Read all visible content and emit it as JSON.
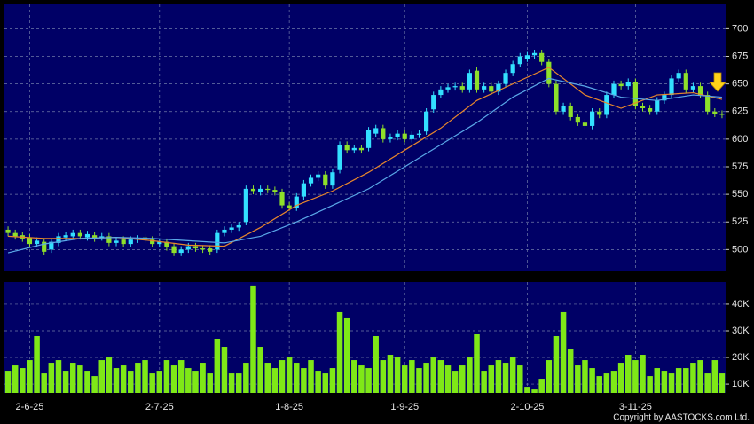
{
  "chart_data": [
    {
      "type": "candlestick",
      "categories": [
        null,
        null,
        null,
        "2-6-25",
        null,
        null,
        null,
        null,
        null,
        null,
        null,
        null,
        null,
        null,
        null,
        null,
        null,
        null,
        null,
        null,
        null,
        "2-7-25",
        null,
        null,
        null,
        null,
        null,
        null,
        null,
        null,
        null,
        null,
        null,
        null,
        null,
        null,
        null,
        null,
        null,
        "1-8-25",
        null,
        null,
        null,
        null,
        null,
        null,
        null,
        null,
        null,
        null,
        null,
        null,
        null,
        null,
        null,
        "1-9-25",
        null,
        null,
        null,
        null,
        null,
        null,
        null,
        null,
        null,
        null,
        null,
        null,
        null,
        null,
        null,
        null,
        "2-10-25",
        null,
        null,
        null,
        null,
        null,
        null,
        null,
        null,
        null,
        null,
        null,
        null,
        null,
        null,
        "3-11-25",
        null,
        null,
        null,
        null,
        null,
        null,
        null,
        null,
        null,
        null,
        null,
        null
      ],
      "open": [
        518,
        515,
        513,
        511,
        505,
        507,
        500,
        506,
        511,
        512,
        515,
        511,
        513,
        511,
        512,
        506,
        509,
        505,
        509,
        511,
        509,
        505,
        507,
        503,
        497,
        500,
        503,
        501,
        501,
        500,
        515,
        518,
        520,
        525,
        555,
        552,
        555,
        554,
        552,
        540,
        538,
        548,
        560,
        565,
        568,
        558,
        572,
        595,
        590,
        592,
        592,
        605,
        610,
        600,
        602,
        605,
        600,
        604,
        607,
        627,
        640,
        645,
        647,
        648,
        645,
        662,
        645,
        648,
        643,
        650,
        660,
        668,
        673,
        676,
        678,
        670,
        650,
        625,
        630,
        620,
        615,
        612,
        625,
        622,
        640,
        650,
        648,
        652,
        630,
        628,
        625,
        635,
        640,
        655,
        660,
        645,
        648,
        640,
        625,
        623
      ],
      "high": [
        521,
        518,
        516,
        514,
        511,
        510,
        510,
        515,
        516,
        518,
        518,
        517,
        516,
        515,
        515,
        511,
        512,
        512,
        513,
        514,
        512,
        510,
        510,
        506,
        503,
        506,
        506,
        504,
        504,
        518,
        521,
        523,
        525,
        558,
        558,
        558,
        558,
        557,
        555,
        543,
        551,
        563,
        568,
        571,
        571,
        573,
        598,
        598,
        595,
        595,
        611,
        613,
        613,
        605,
        608,
        608,
        607,
        608,
        628,
        643,
        648,
        650,
        651,
        651,
        663,
        665,
        651,
        651,
        653,
        663,
        671,
        678,
        679,
        681,
        681,
        673,
        653,
        633,
        633,
        623,
        618,
        628,
        628,
        643,
        653,
        653,
        655,
        655,
        633,
        631,
        638,
        643,
        658,
        663,
        663,
        651,
        651,
        643,
        628,
        626
      ],
      "low": [
        512,
        509,
        507,
        502,
        502,
        495,
        497,
        503,
        508,
        509,
        509,
        508,
        507,
        508,
        503,
        503,
        502,
        502,
        506,
        506,
        502,
        502,
        499,
        494,
        494,
        497,
        498,
        497,
        495,
        497,
        512,
        515,
        517,
        522,
        550,
        549,
        551,
        549,
        537,
        535,
        535,
        545,
        557,
        562,
        555,
        555,
        569,
        587,
        587,
        587,
        589,
        602,
        597,
        597,
        599,
        597,
        597,
        601,
        604,
        624,
        637,
        642,
        644,
        642,
        642,
        642,
        642,
        640,
        640,
        647,
        657,
        665,
        670,
        673,
        667,
        647,
        622,
        622,
        617,
        612,
        609,
        609,
        619,
        619,
        637,
        645,
        645,
        627,
        625,
        622,
        622,
        632,
        637,
        652,
        642,
        642,
        637,
        622,
        620,
        619
      ],
      "close": [
        515,
        512,
        510,
        505,
        508,
        498,
        507,
        512,
        513,
        515,
        512,
        514,
        510,
        512,
        506,
        508,
        505,
        509,
        510,
        509,
        505,
        507,
        502,
        497,
        500,
        503,
        501,
        500,
        498,
        515,
        518,
        520,
        522,
        555,
        553,
        555,
        554,
        552,
        540,
        538,
        548,
        560,
        565,
        568,
        558,
        570,
        595,
        590,
        592,
        590,
        608,
        610,
        600,
        602,
        605,
        600,
        604,
        605,
        625,
        640,
        645,
        647,
        648,
        645,
        660,
        645,
        648,
        643,
        650,
        660,
        668,
        675,
        676,
        678,
        670,
        650,
        625,
        630,
        620,
        615,
        612,
        625,
        622,
        640,
        650,
        648,
        652,
        630,
        628,
        625,
        635,
        640,
        655,
        660,
        645,
        648,
        640,
        625,
        623,
        622
      ],
      "up_color": "#33e0ff",
      "down_color": "#8ee02a",
      "overlays": [
        {
          "color": "#e8872c",
          "x": [
            0,
            5,
            10,
            15,
            20,
            25,
            30,
            35,
            40,
            45,
            50,
            55,
            60,
            65,
            70,
            75,
            80,
            85,
            90,
            95,
            99
          ],
          "values": [
            512,
            510,
            510,
            511,
            508,
            504,
            503,
            520,
            540,
            553,
            570,
            590,
            610,
            635,
            650,
            665,
            640,
            628,
            640,
            642,
            636
          ]
        },
        {
          "color": "#5aa8e8",
          "x": [
            0,
            5,
            10,
            15,
            20,
            25,
            30,
            35,
            40,
            45,
            50,
            55,
            60,
            65,
            70,
            75,
            80,
            85,
            90,
            95,
            99
          ],
          "values": [
            497,
            505,
            510,
            511,
            510,
            508,
            506,
            512,
            525,
            540,
            555,
            575,
            595,
            615,
            638,
            655,
            648,
            638,
            635,
            640,
            638
          ]
        }
      ],
      "ylim": [
        481,
        722
      ],
      "yticks": [
        500,
        525,
        550,
        575,
        600,
        625,
        650,
        675,
        700
      ],
      "grid": true
    },
    {
      "type": "bar",
      "values": [
        15000,
        17000,
        16000,
        19000,
        28000,
        14000,
        18000,
        19000,
        15000,
        18000,
        17000,
        15000,
        13000,
        19000,
        20000,
        16000,
        17000,
        15000,
        18000,
        19000,
        14000,
        15000,
        19000,
        17000,
        19000,
        16000,
        15000,
        18000,
        14000,
        27000,
        24000,
        14000,
        14000,
        18000,
        47000,
        24000,
        18000,
        16000,
        19000,
        20000,
        18000,
        16000,
        19000,
        15000,
        14000,
        16000,
        37000,
        35000,
        19000,
        17000,
        16000,
        28000,
        19000,
        21000,
        20000,
        17000,
        19000,
        16000,
        18000,
        20000,
        19000,
        17000,
        15000,
        17000,
        20000,
        29000,
        15000,
        17000,
        19000,
        18000,
        20000,
        17000,
        9000,
        8000,
        12000,
        19000,
        28000,
        37000,
        23000,
        17000,
        19000,
        16000,
        13000,
        14000,
        15000,
        18000,
        21000,
        19000,
        21000,
        13000,
        16000,
        15000,
        14000,
        16000,
        16000,
        18000,
        19000,
        14000,
        19000,
        14000
      ],
      "color": "#7fe817",
      "ylim": [
        6700,
        48300
      ],
      "yticks": [
        {
          "value": 10000,
          "label": "10K"
        },
        {
          "value": 20000,
          "label": "20K"
        },
        {
          "value": 30000,
          "label": "30K"
        },
        {
          "value": 40000,
          "label": "40K"
        }
      ],
      "grid": true,
      "annotation": "Copyright by AASTOCKS.com Ltd."
    }
  ]
}
